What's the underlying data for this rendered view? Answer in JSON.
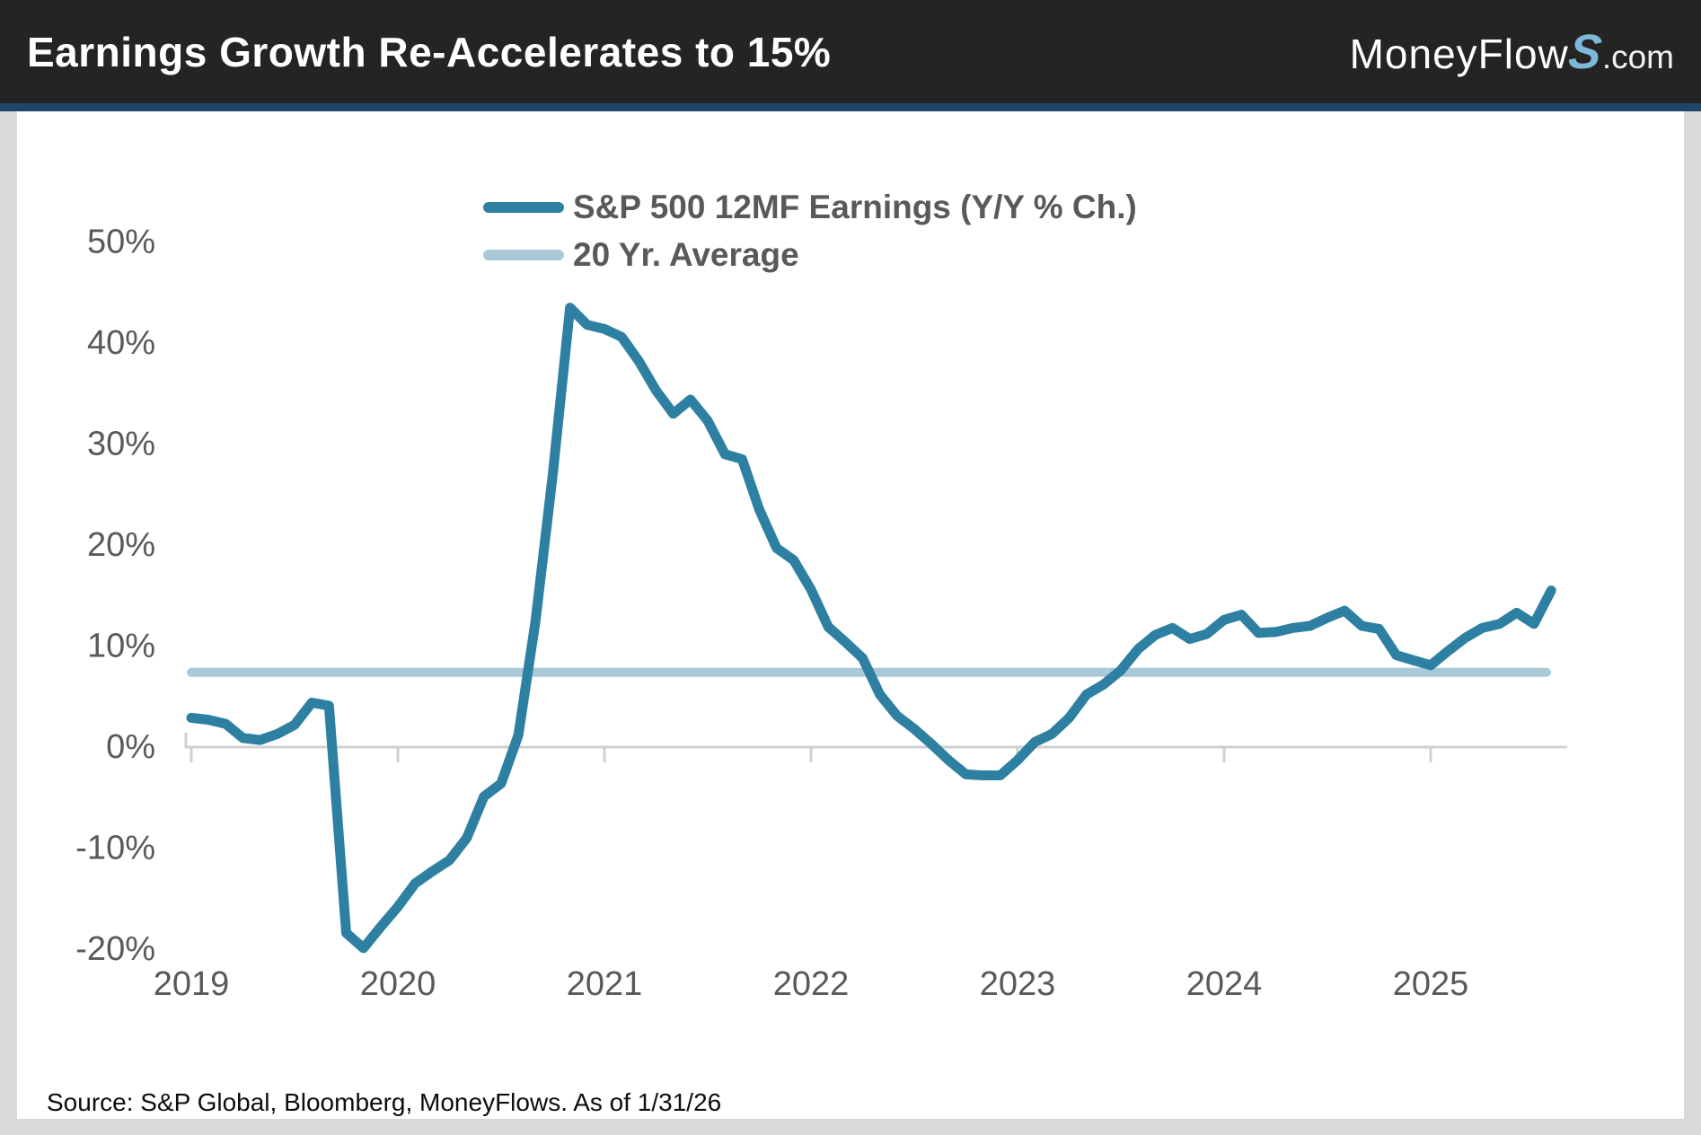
{
  "header": {
    "title": "Earnings Growth Re-Accelerates to 15%",
    "logo": {
      "wordmark": "MoneyFlow",
      "s": "S",
      "suffix": ".com",
      "s_color": "#7db9da"
    },
    "background_color": "#242424",
    "accent_strip_color": "#1d4668"
  },
  "legend": {
    "series1_label": "S&P 500 12MF Earnings (Y/Y % Ch.)",
    "series2_label": "20 Yr. Average"
  },
  "footer": {
    "source": "Source: S&P Global, Bloomberg, MoneyFlows. As of 1/31/26"
  },
  "chart_data": {
    "type": "line",
    "title": "Earnings Growth Re-Accelerates to 15%",
    "x_start_year": 2019,
    "x_step_months": 1,
    "x_tick_years": [
      2019,
      2020,
      2021,
      2022,
      2023,
      2024,
      2025
    ],
    "y_ticks": [
      50,
      40,
      30,
      20,
      10,
      0,
      -10,
      -20
    ],
    "y_tick_format": "percent",
    "ylim": [
      -22,
      52
    ],
    "grid": false,
    "legend_position": "top-center",
    "axis_color": "#d0d0d0",
    "label_color": "#595959",
    "series": [
      {
        "name": "S&P 500 12MF Earnings (Y/Y % Ch.)",
        "color": "#2d80a1",
        "values": [
          2.9,
          2.7,
          2.3,
          0.9,
          0.7,
          1.3,
          2.2,
          4.4,
          4.1,
          -18.4,
          -19.9,
          -17.8,
          -15.8,
          -13.5,
          -12.3,
          -11.2,
          -9.0,
          -4.9,
          -3.6,
          1.2,
          12.5,
          27.0,
          43.5,
          41.8,
          41.4,
          40.6,
          38.2,
          35.3,
          33.0,
          34.4,
          32.3,
          29.0,
          28.5,
          23.5,
          19.7,
          18.5,
          15.6,
          11.9,
          10.4,
          8.8,
          5.2,
          3.1,
          1.8,
          0.3,
          -1.3,
          -2.7,
          -2.8,
          -2.8,
          -1.3,
          0.5,
          1.3,
          2.9,
          5.2,
          6.2,
          7.6,
          9.7,
          11.1,
          11.8,
          10.7,
          11.2,
          12.6,
          13.1,
          11.3,
          11.4,
          11.8,
          12.0,
          12.8,
          13.5,
          12.0,
          11.7,
          9.1,
          8.6,
          8.1,
          9.5,
          10.8,
          11.8,
          12.2,
          13.3,
          12.2,
          15.5
        ]
      },
      {
        "name": "20 Yr. Average",
        "color": "#a9c9d9",
        "constant_value": 7.4
      }
    ]
  }
}
